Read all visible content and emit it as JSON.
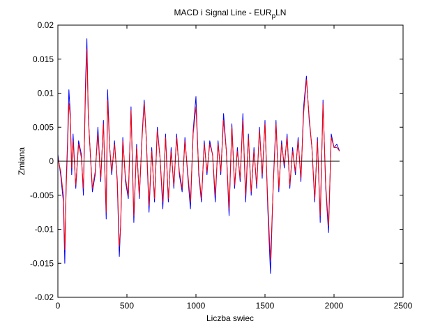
{
  "chart_data": {
    "type": "line",
    "title": "MACD i Signal Line - EUR",
    "title_sub": "p",
    "title_suffix": "LN",
    "xlabel": "Liczba swiec",
    "ylabel": "Zmiana",
    "xlim": [
      0,
      2500
    ],
    "ylim": [
      -0.02,
      0.02
    ],
    "x_ticks": [
      0,
      500,
      1000,
      1500,
      2000,
      2500
    ],
    "y_ticks": [
      -0.02,
      -0.015,
      -0.01,
      -0.005,
      0,
      0.005,
      0.01,
      0.015,
      0.02
    ],
    "x_tick_labels": [
      "0",
      "500",
      "1000",
      "1500",
      "2000",
      "2500"
    ],
    "y_tick_labels": [
      "-0.02",
      "-0.015",
      "-0.01",
      "-0.005",
      "0",
      "0.005",
      "0.01",
      "0.015",
      "0.02"
    ],
    "grid": false,
    "legend": "none",
    "zero_line": {
      "y": 0,
      "x_range": [
        0,
        2040
      ],
      "color": "#000000"
    },
    "series": [
      {
        "color": "#0000ff",
        "x": [
          0,
          20,
          40,
          50,
          60,
          70,
          80,
          90,
          100,
          110,
          130,
          150,
          170,
          185,
          200,
          210,
          220,
          230,
          250,
          270,
          290,
          310,
          330,
          350,
          360,
          375,
          390,
          410,
          430,
          445,
          455,
          470,
          490,
          510,
          530,
          550,
          570,
          590,
          610,
          625,
          640,
          660,
          680,
          700,
          720,
          740,
          760,
          780,
          800,
          820,
          840,
          860,
          880,
          900,
          920,
          940,
          960,
          980,
          1000,
          1020,
          1040,
          1060,
          1080,
          1100,
          1120,
          1140,
          1160,
          1180,
          1200,
          1220,
          1240,
          1260,
          1280,
          1300,
          1320,
          1340,
          1360,
          1380,
          1400,
          1420,
          1440,
          1460,
          1480,
          1500,
          1520,
          1540,
          1560,
          1580,
          1600,
          1620,
          1640,
          1660,
          1680,
          1700,
          1720,
          1740,
          1760,
          1780,
          1800,
          1820,
          1840,
          1860,
          1880,
          1900,
          1920,
          1940,
          1960,
          1980,
          2000,
          2020,
          2040
        ],
        "y": [
          0.001,
          -0.002,
          -0.006,
          -0.015,
          -0.003,
          0.003,
          0.0105,
          0.007,
          -0.002,
          0.004,
          -0.004,
          0.003,
          0.001,
          -0.005,
          0.0115,
          0.018,
          0.0065,
          0.003,
          -0.0045,
          -0.002,
          0.005,
          -0.003,
          0.006,
          -0.0085,
          0.0105,
          0.002,
          -0.002,
          0.003,
          -0.003,
          -0.014,
          -0.009,
          0.0035,
          -0.003,
          -0.0055,
          0.008,
          -0.009,
          0.0025,
          -0.0055,
          0.004,
          0.009,
          0.0035,
          -0.0075,
          0.002,
          -0.006,
          0.005,
          0.0005,
          -0.007,
          0.004,
          -0.006,
          0.002,
          -0.004,
          0.004,
          -0.002,
          -0.0045,
          0.0035,
          -0.002,
          -0.007,
          0.0045,
          0.0095,
          -0.002,
          -0.006,
          0.003,
          -0.002,
          0.003,
          0.001,
          -0.006,
          0.003,
          -0.002,
          0.007,
          0.0015,
          -0.008,
          0.0055,
          -0.004,
          0.002,
          -0.003,
          0.007,
          -0.006,
          0.004,
          -0.005,
          0.002,
          -0.004,
          0.005,
          -0.0025,
          0.006,
          -0.007,
          -0.0165,
          -0.003,
          0.006,
          -0.0045,
          0.003,
          -0.001,
          0.004,
          -0.004,
          0.002,
          -0.002,
          0.0035,
          -0.003,
          0.008,
          0.0125,
          0.006,
          0.002,
          -0.006,
          0.0035,
          -0.009,
          0.009,
          -0.004,
          -0.0105,
          0.004,
          0.002,
          0.0025,
          0.0015
        ]
      },
      {
        "color": "#ff0000",
        "x": [
          0,
          20,
          40,
          50,
          60,
          70,
          80,
          90,
          100,
          110,
          130,
          150,
          170,
          185,
          200,
          210,
          220,
          230,
          250,
          270,
          290,
          310,
          330,
          350,
          360,
          375,
          390,
          410,
          430,
          445,
          455,
          470,
          490,
          510,
          530,
          550,
          570,
          590,
          610,
          625,
          640,
          660,
          680,
          700,
          720,
          740,
          760,
          780,
          800,
          820,
          840,
          860,
          880,
          900,
          920,
          940,
          960,
          980,
          1000,
          1020,
          1040,
          1060,
          1080,
          1100,
          1120,
          1140,
          1160,
          1180,
          1200,
          1220,
          1240,
          1260,
          1280,
          1300,
          1320,
          1340,
          1360,
          1380,
          1400,
          1420,
          1440,
          1460,
          1480,
          1500,
          1520,
          1540,
          1560,
          1580,
          1600,
          1620,
          1640,
          1660,
          1680,
          1700,
          1720,
          1740,
          1760,
          1780,
          1800,
          1820,
          1840,
          1860,
          1880,
          1900,
          1920,
          1940,
          1960,
          1980,
          2000,
          2020,
          2040
        ],
        "y": [
          0.0005,
          -0.0015,
          -0.005,
          -0.013,
          -0.004,
          0.002,
          0.0085,
          0.0065,
          -0.001,
          0.003,
          -0.0035,
          0.0025,
          0.0005,
          -0.004,
          0.01,
          0.0165,
          0.007,
          0.003,
          -0.004,
          -0.0015,
          0.004,
          -0.0025,
          0.0055,
          -0.0075,
          0.009,
          0.002,
          -0.0015,
          0.0025,
          -0.0025,
          -0.0125,
          -0.0095,
          0.003,
          -0.0025,
          -0.005,
          0.0075,
          -0.008,
          0.002,
          -0.005,
          0.0035,
          0.0085,
          0.0035,
          -0.0065,
          0.0015,
          -0.0055,
          0.0045,
          0.0005,
          -0.006,
          0.0035,
          -0.0055,
          0.0015,
          -0.0035,
          0.0035,
          -0.0015,
          -0.004,
          0.003,
          -0.0015,
          -0.006,
          0.004,
          0.008,
          -0.0015,
          -0.0055,
          0.0025,
          -0.0015,
          0.0025,
          0.001,
          -0.005,
          0.0025,
          -0.0015,
          0.006,
          0.0015,
          -0.007,
          0.005,
          -0.0035,
          0.0015,
          -0.0025,
          0.006,
          -0.005,
          0.0035,
          -0.0045,
          0.0015,
          -0.0035,
          0.0045,
          -0.002,
          0.0055,
          -0.006,
          -0.0145,
          -0.0035,
          0.0055,
          -0.004,
          0.0025,
          -0.0005,
          0.0035,
          -0.0035,
          0.0015,
          -0.0015,
          0.003,
          -0.0025,
          0.007,
          0.012,
          0.0065,
          0.002,
          -0.0055,
          0.003,
          -0.008,
          0.0085,
          -0.0035,
          -0.0095,
          0.0035,
          0.002,
          0.002,
          0.0015
        ]
      }
    ]
  }
}
